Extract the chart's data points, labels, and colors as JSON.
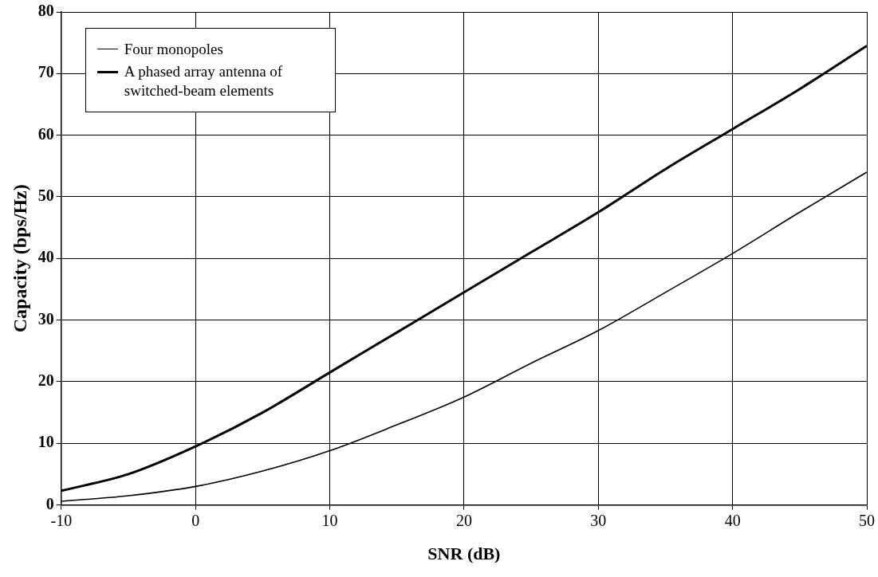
{
  "chart_data": {
    "type": "line",
    "xlabel": "SNR (dB)",
    "ylabel": "Capacity (bps/Hz)",
    "x": [
      -10,
      -5,
      0,
      5,
      10,
      15,
      20,
      25,
      30,
      35,
      40,
      45,
      50
    ],
    "series": [
      {
        "name": "Four monopoles",
        "color": "#000000",
        "values": [
          0.6,
          1.5,
          3,
          5.5,
          8.8,
          13,
          17.5,
          23,
          28.3,
          34.5,
          40.8,
          47.5,
          54
        ]
      },
      {
        "name": "A phased array antenna of switched-beam elements",
        "color": "#000000",
        "values": [
          2.3,
          5,
          9.5,
          15,
          21.5,
          28,
          34.5,
          41,
          47.5,
          54.5,
          61,
          67.5,
          74.5
        ]
      }
    ],
    "xlim": [
      -10,
      50
    ],
    "xticks": [
      -10,
      0,
      10,
      20,
      30,
      40,
      50
    ],
    "ylim": [
      0,
      80
    ],
    "yticks": [
      0,
      10,
      20,
      30,
      40,
      50,
      60,
      70,
      80
    ],
    "grid": true,
    "legend": "top left",
    "marker": "none",
    "line_style": "solid"
  }
}
